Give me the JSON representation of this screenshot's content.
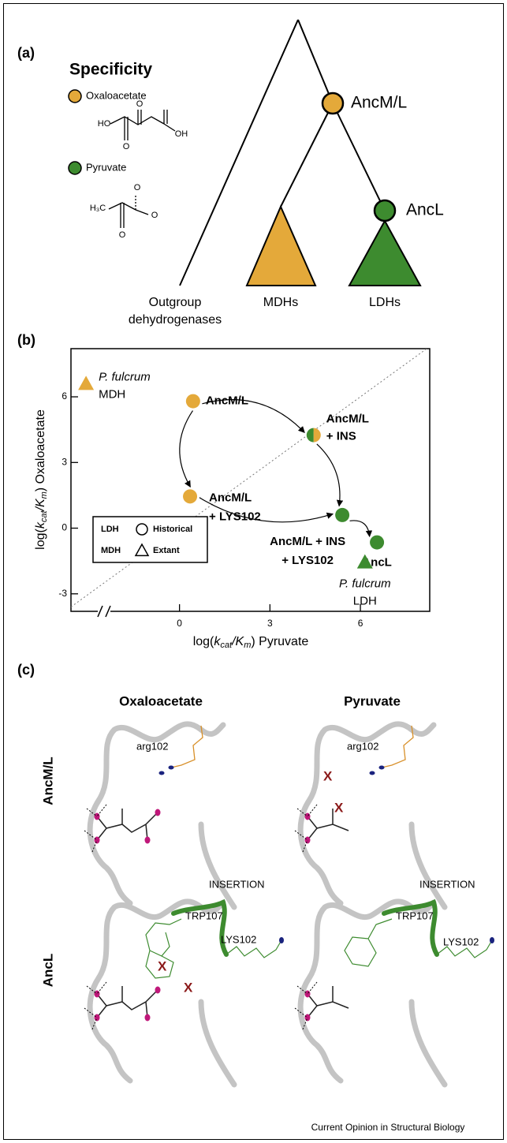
{
  "panel_a": {
    "label": "(a)",
    "legend_title": "Specificity",
    "legend": [
      {
        "name": "Oxaloacetate",
        "color": "#E4A93A"
      },
      {
        "name": "Pyruvate",
        "color": "#3D8B2F"
      }
    ],
    "nodes": [
      "AncM/L",
      "AncL"
    ],
    "leaves": [
      [
        "Outgroup",
        "dehydrogenases"
      ],
      "MDHs",
      "LDHs"
    ],
    "oxaloacetate_atoms": [
      "HO",
      "O",
      "O",
      "OH"
    ],
    "pyruvate_atoms": [
      "H₃C",
      "O",
      "O",
      "O"
    ]
  },
  "chart_data": {
    "type": "scatter",
    "label": "(b)",
    "xlabel": [
      "log(",
      "k",
      "cat",
      "/K",
      "m",
      ") Pyruvate"
    ],
    "ylabel": [
      "log(",
      "k",
      "cat",
      "/K",
      "m",
      ") Oxaloacetate"
    ],
    "x": [
      0.45,
      4.45,
      0.35,
      5.4,
      6.55,
      -3.1,
      6.15
    ],
    "y": [
      5.8,
      4.25,
      1.45,
      0.6,
      -0.65,
      6.6,
      -1.55
    ],
    "point_labels": [
      [
        "AncM/L"
      ],
      [
        "AncM/L",
        "+ INS"
      ],
      [
        "AncM/L",
        "+ LYS102"
      ],
      [
        "AncM/L + INS",
        "+ LYS102"
      ],
      [
        "AncL"
      ],
      [
        "P. fulcrum",
        "MDH"
      ],
      [
        "P. fulcrum",
        "LDH"
      ]
    ],
    "markers": [
      "circle",
      "circle",
      "circle",
      "circle",
      "circle",
      "triangle",
      "triangle"
    ],
    "point_colors": [
      "#E4A93A",
      [
        "#3D8B2F",
        "#E4A93A"
      ],
      "#E4A93A",
      "#3D8B2F",
      "#3D8B2F",
      "#E4A93A",
      "#3D8B2F"
    ],
    "xlim": [
      -3.6,
      8.3
    ],
    "ylim": [
      -3.8,
      8.2
    ],
    "xticks": [
      0,
      3,
      6
    ],
    "yticks": [
      -3,
      0,
      3,
      6
    ],
    "diagonal": true,
    "legend_position": "lower left",
    "legend": {
      "colors": [
        {
          "name": "LDH",
          "color": "#3D8B2F"
        },
        {
          "name": "MDH",
          "color": "#E4A93A"
        }
      ],
      "markers": [
        {
          "name": "Historical",
          "marker": "circle"
        },
        {
          "name": "Extant",
          "marker": "triangle"
        }
      ]
    }
  },
  "panel_c": {
    "label": "(c)",
    "columns": [
      "Oxaloacetate",
      "Pyruvate"
    ],
    "rows": [
      "AncM/L",
      "AncL"
    ],
    "cells": [
      {
        "texts": [
          "arg102"
        ]
      },
      {
        "texts": [
          "arg102",
          "X",
          "X"
        ]
      },
      {
        "texts": [
          "INSERTION",
          "TRP107",
          "LYS102",
          "X",
          "X"
        ]
      },
      {
        "texts": [
          "INSERTION",
          "TRP107",
          "LYS102"
        ]
      }
    ]
  },
  "footer": "Current Opinion in Structural Biology"
}
